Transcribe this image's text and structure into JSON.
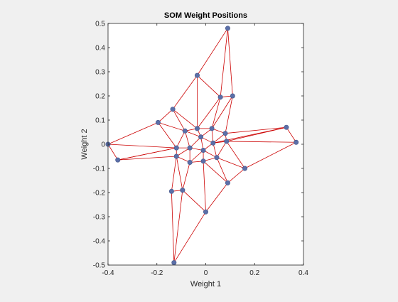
{
  "chart_data": {
    "type": "scatter",
    "title": "SOM Weight Positions",
    "xlabel": "Weight 1",
    "ylabel": "Weight 2",
    "xlim": [
      -0.4,
      0.4
    ],
    "ylim": [
      -0.5,
      0.5
    ],
    "xticks": [
      -0.4,
      -0.2,
      0,
      0.2,
      0.4
    ],
    "xtick_labels": [
      "-0.4",
      "-0.2",
      "0",
      "0.2",
      "0.4"
    ],
    "yticks": [
      -0.5,
      -0.4,
      -0.3,
      -0.2,
      -0.1,
      0,
      0.1,
      0.2,
      0.3,
      0.4,
      0.5
    ],
    "ytick_labels": [
      "-0.5",
      "-0.4",
      "-0.3",
      "-0.2",
      "-0.1",
      "0",
      "0.1",
      "0.2",
      "0.3",
      "0.4",
      "0.5"
    ],
    "grid": false,
    "marker_color": "#5b6fa8",
    "edge_color": "#cc0000",
    "neurons": [
      [
        0.09,
        0.48
      ],
      [
        -0.035,
        0.285
      ],
      [
        0.06,
        0.195
      ],
      [
        0.11,
        0.2
      ],
      [
        -0.135,
        0.145
      ],
      [
        -0.195,
        0.09
      ],
      [
        -0.085,
        0.055
      ],
      [
        -0.035,
        0.065
      ],
      [
        0.025,
        0.065
      ],
      [
        0.08,
        0.045
      ],
      [
        0.33,
        0.07
      ],
      [
        -0.02,
        0.03
      ],
      [
        0.03,
        0.005
      ],
      [
        0.085,
        0.012
      ],
      [
        0.37,
        0.008
      ],
      [
        -0.4,
        0.0
      ],
      [
        -0.12,
        -0.015
      ],
      [
        -0.065,
        -0.015
      ],
      [
        -0.01,
        -0.025
      ],
      [
        -0.36,
        -0.065
      ],
      [
        -0.12,
        -0.05
      ],
      [
        0.045,
        -0.055
      ],
      [
        -0.065,
        -0.075
      ],
      [
        -0.01,
        -0.07
      ],
      [
        0.16,
        -0.1
      ],
      [
        0.09,
        -0.16
      ],
      [
        -0.14,
        -0.195
      ],
      [
        -0.095,
        -0.19
      ],
      [
        0.0,
        -0.28
      ],
      [
        -0.13,
        -0.49
      ]
    ],
    "edges": [
      [
        0,
        1
      ],
      [
        0,
        2
      ],
      [
        0,
        3
      ],
      [
        1,
        2
      ],
      [
        1,
        4
      ],
      [
        1,
        7
      ],
      [
        2,
        3
      ],
      [
        2,
        8
      ],
      [
        3,
        9
      ],
      [
        3,
        8
      ],
      [
        4,
        5
      ],
      [
        4,
        6
      ],
      [
        4,
        7
      ],
      [
        5,
        6
      ],
      [
        5,
        15
      ],
      [
        5,
        16
      ],
      [
        6,
        7
      ],
      [
        6,
        11
      ],
      [
        6,
        16
      ],
      [
        6,
        17
      ],
      [
        7,
        8
      ],
      [
        7,
        11
      ],
      [
        7,
        2
      ],
      [
        8,
        9
      ],
      [
        8,
        12
      ],
      [
        8,
        11
      ],
      [
        9,
        10
      ],
      [
        9,
        13
      ],
      [
        9,
        12
      ],
      [
        10,
        13
      ],
      [
        10,
        14
      ],
      [
        10,
        12
      ],
      [
        11,
        12
      ],
      [
        11,
        17
      ],
      [
        11,
        18
      ],
      [
        12,
        13
      ],
      [
        12,
        18
      ],
      [
        12,
        21
      ],
      [
        13,
        14
      ],
      [
        13,
        21
      ],
      [
        13,
        24
      ],
      [
        14,
        24
      ],
      [
        15,
        19
      ],
      [
        15,
        16
      ],
      [
        16,
        19
      ],
      [
        16,
        20
      ],
      [
        16,
        17
      ],
      [
        17,
        20
      ],
      [
        17,
        22
      ],
      [
        17,
        18
      ],
      [
        18,
        22
      ],
      [
        18,
        23
      ],
      [
        18,
        21
      ],
      [
        19,
        20
      ],
      [
        20,
        22
      ],
      [
        20,
        26
      ],
      [
        20,
        27
      ],
      [
        21,
        23
      ],
      [
        21,
        24
      ],
      [
        21,
        25
      ],
      [
        22,
        23
      ],
      [
        22,
        27
      ],
      [
        23,
        25
      ],
      [
        23,
        28
      ],
      [
        24,
        25
      ],
      [
        25,
        28
      ],
      [
        26,
        27
      ],
      [
        26,
        29
      ],
      [
        27,
        28
      ],
      [
        27,
        29
      ],
      [
        28,
        29
      ],
      [
        19,
        16
      ]
    ]
  }
}
